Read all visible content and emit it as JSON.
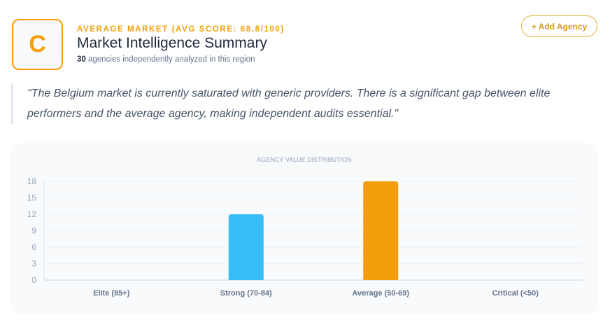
{
  "header": {
    "grade": "C",
    "kicker": "AVERAGE MARKET (AVG SCORE: 68.8/100)",
    "title": "Market Intelligence Summary",
    "count": "30",
    "subtitle": "agencies independently analyzed in this region",
    "add_button": "+ Add Agency"
  },
  "quote": "\"The Belgium market is currently saturated with generic providers. There is a significant gap between elite performers and the average agency, making independent audits essential.\"",
  "chart_data": {
    "type": "bar",
    "title": "AGENCY VALUE DISTRIBUTION",
    "categories": [
      "Elite (85+)",
      "Strong (70-84)",
      "Average (50-69)",
      "Critical (<50)"
    ],
    "values": [
      0,
      12,
      18,
      0
    ],
    "colors": [
      "#22c55e",
      "#38bdf8",
      "#f59e0b",
      "#ef4444"
    ],
    "ylim": [
      0,
      18
    ],
    "yticks": [
      0,
      3,
      6,
      9,
      12,
      15,
      18
    ],
    "grid": true,
    "xlabel": "",
    "ylabel": ""
  }
}
